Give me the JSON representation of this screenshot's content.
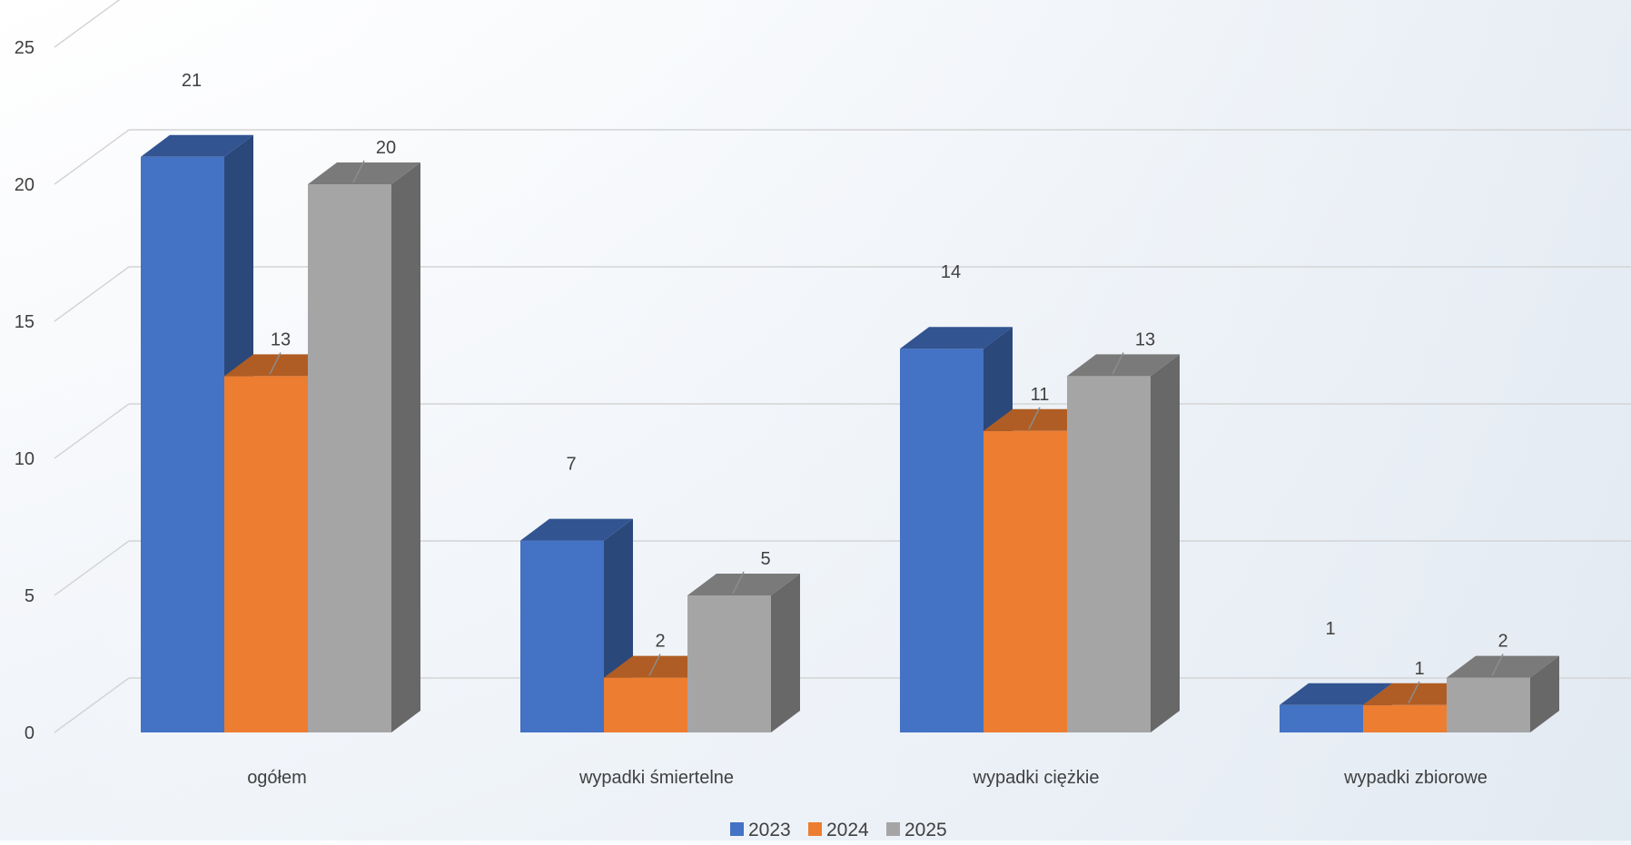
{
  "chart_data": {
    "type": "bar",
    "title": "",
    "xlabel": "",
    "ylabel": "",
    "ylim": [
      0,
      25
    ],
    "y_ticks": [
      0,
      5,
      10,
      15,
      20,
      25
    ],
    "grid": true,
    "legend_position": "bottom",
    "style": "3d-clustered-column",
    "categories": [
      "ogółem",
      "wypadki śmiertelne",
      "wypadki ciężkie",
      "wypadki zbiorowe"
    ],
    "series": [
      {
        "name": "2023",
        "color": "#4472C4",
        "values": [
          21,
          7,
          14,
          1
        ]
      },
      {
        "name": "2024",
        "color": "#ED7D31",
        "values": [
          13,
          2,
          11,
          1
        ]
      },
      {
        "name": "2025",
        "color": "#A5A5A5",
        "values": [
          20,
          5,
          13,
          2
        ]
      }
    ]
  }
}
